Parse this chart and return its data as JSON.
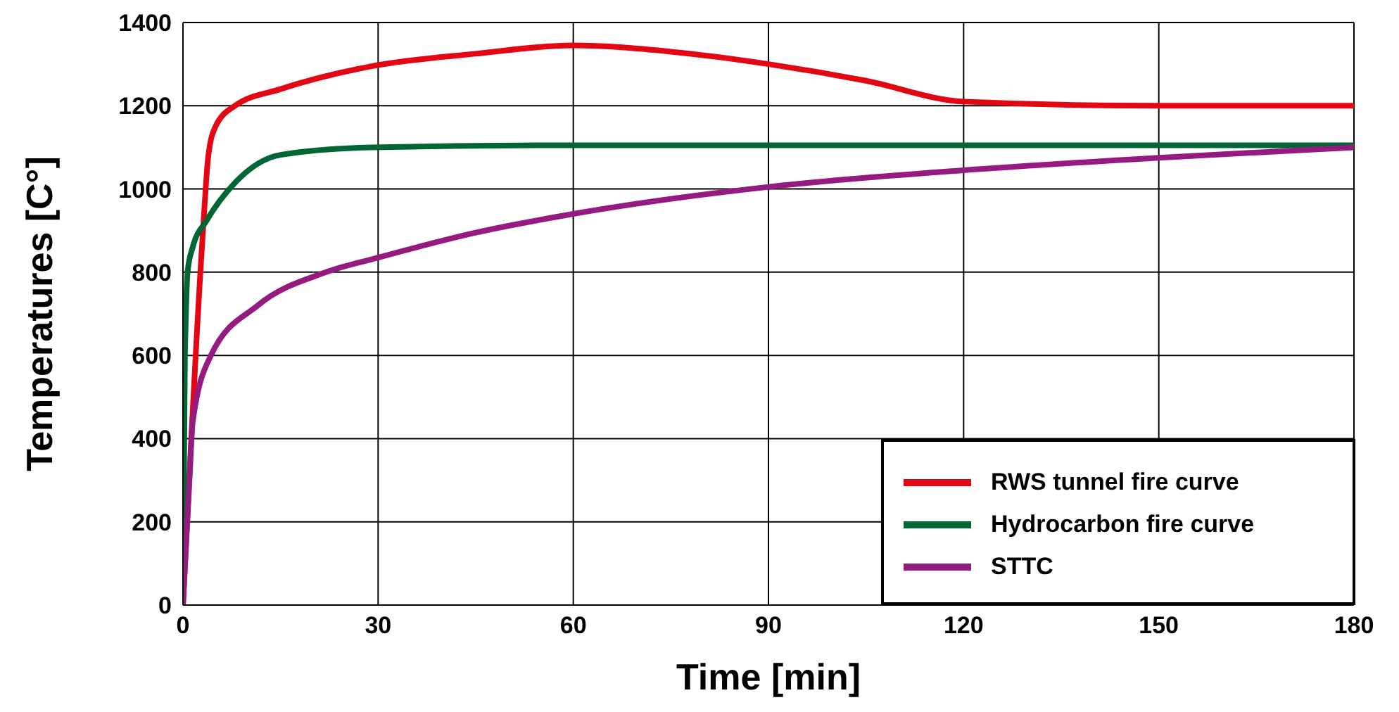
{
  "chart_data": {
    "type": "line",
    "xlabel": "Time [min]",
    "ylabel": "Temperatures [C°]",
    "xlim": [
      0,
      180
    ],
    "xticks": [
      0,
      30,
      60,
      90,
      120,
      150,
      180
    ],
    "ylim": [
      0,
      1400
    ],
    "yticks": [
      0,
      200,
      400,
      600,
      800,
      1000,
      1200,
      1400
    ],
    "grid": true,
    "legend": "bottom right",
    "marker": "none",
    "line_style": "solid",
    "series": [
      {
        "name": "RWS tunnel fire curve",
        "color": "#e30613",
        "x": [
          0,
          3,
          3.9,
          5,
          8,
          15,
          29,
          45,
          60,
          75,
          90,
          105,
          120,
          150,
          180
        ],
        "values": [
          0,
          880,
          1080,
          1150,
          1200,
          1240,
          1295,
          1325,
          1345,
          1330,
          1300,
          1260,
          1210,
          1200,
          1200
        ]
      },
      {
        "name": "Hydrocarbon fire curve",
        "color": "#006633",
        "x": [
          0,
          0.3,
          0.4,
          0.7,
          1.5,
          3.6,
          8,
          15,
          29,
          60,
          90,
          120,
          180
        ],
        "values": [
          0,
          600,
          666,
          800,
          860,
          923,
          1015,
          1082,
          1100,
          1105,
          1105,
          1105,
          1105
        ]
      },
      {
        "name": "STTC",
        "color": "#951b81",
        "x": [
          0,
          1,
          1.5,
          4.3,
          11.5,
          22,
          30,
          45,
          60,
          90,
          120,
          150,
          180
        ],
        "values": [
          0,
          300,
          440,
          600,
          720,
          800,
          835,
          895,
          940,
          1005,
          1045,
          1075,
          1100
        ]
      }
    ]
  }
}
